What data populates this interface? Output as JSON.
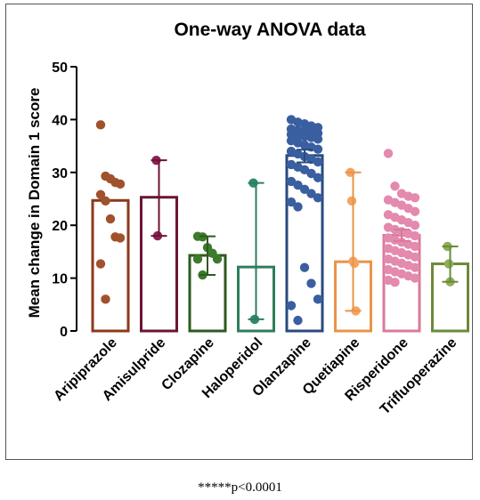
{
  "chart_data": {
    "type": "bar",
    "title": "One-way ANOVA data",
    "xlabel": "",
    "ylabel": "Mean change in Domain 1 score",
    "ylim": [
      0,
      50
    ],
    "yticks": [
      "0",
      "10",
      "20",
      "30",
      "40",
      "50"
    ],
    "grid": false,
    "categories": [
      "Aripiprazole",
      "Amisulpride",
      "Clozapine",
      "Haloperidol",
      "Olanzapine",
      "Quetiapine",
      "Risperidone",
      "Trifluoperazine"
    ],
    "colors": [
      "#8B3A1A",
      "#6B1535",
      "#2F5A1F",
      "#2E7D5B",
      "#2A4A7E",
      "#E8944A",
      "#D97A98",
      "#6B8A3A"
    ],
    "point_colors": [
      "#A0522D",
      "#8B2252",
      "#3E7A2C",
      "#2E8B6A",
      "#3A5FA0",
      "#F4A460",
      "#E38AAE",
      "#8FAE5A"
    ],
    "values": [
      24.7,
      25.3,
      14.3,
      12.1,
      33.2,
      13.1,
      18.1,
      12.7
    ],
    "error_low": [
      null,
      18.0,
      10.6,
      2.2,
      31.9,
      3.8,
      17.0,
      9.3
    ],
    "error_high": [
      null,
      32.3,
      17.9,
      28.0,
      34.3,
      30.0,
      19.2,
      16.0
    ],
    "points": [
      [
        39,
        29.3,
        28.8,
        28.1,
        27.8,
        25.8,
        24.6,
        21.2,
        17.8,
        17.6,
        12.7,
        6.0
      ],
      [
        32.3,
        18.0
      ],
      [
        17.9,
        17.8,
        15.8,
        14.7,
        13.6,
        13.6,
        10.6
      ],
      [
        28.0,
        2.2
      ],
      [
        40,
        39.5,
        39.2,
        38.8,
        38.5,
        38.2,
        38.0,
        37.8,
        37.6,
        37.4,
        37.2,
        37.0,
        36.8,
        36.6,
        36.3,
        36.0,
        35.6,
        35.2,
        34.8,
        34.4,
        34.0,
        33.5,
        33.0,
        32.5,
        32.0,
        31.5,
        31.0,
        30.5,
        29.8,
        29.0,
        28.3,
        27.6,
        26.8,
        26.0,
        25.2,
        24.4,
        23.5,
        12.0,
        9.0,
        6.0,
        4.8,
        2.0
      ],
      [
        30.0,
        24.6,
        13.2,
        12.8,
        3.8
      ],
      [
        33.6,
        27.4,
        26.0,
        25.5,
        25.2,
        24.8,
        24.3,
        23.8,
        23.2,
        22.6,
        22.0,
        21.5,
        21.0,
        20.5,
        20.0,
        19.6,
        19.2,
        18.8,
        18.4,
        18.0,
        17.6,
        17.2,
        16.8,
        16.4,
        16.0,
        15.6,
        15.2,
        14.8,
        14.4,
        14.0,
        13.6,
        13.2,
        12.8,
        12.4,
        12.0,
        11.6,
        11.2,
        10.8,
        10.4,
        10.0,
        9.6,
        9.2
      ],
      [
        16.0,
        12.7,
        9.3
      ]
    ]
  },
  "footnote": "*****p<0.0001"
}
